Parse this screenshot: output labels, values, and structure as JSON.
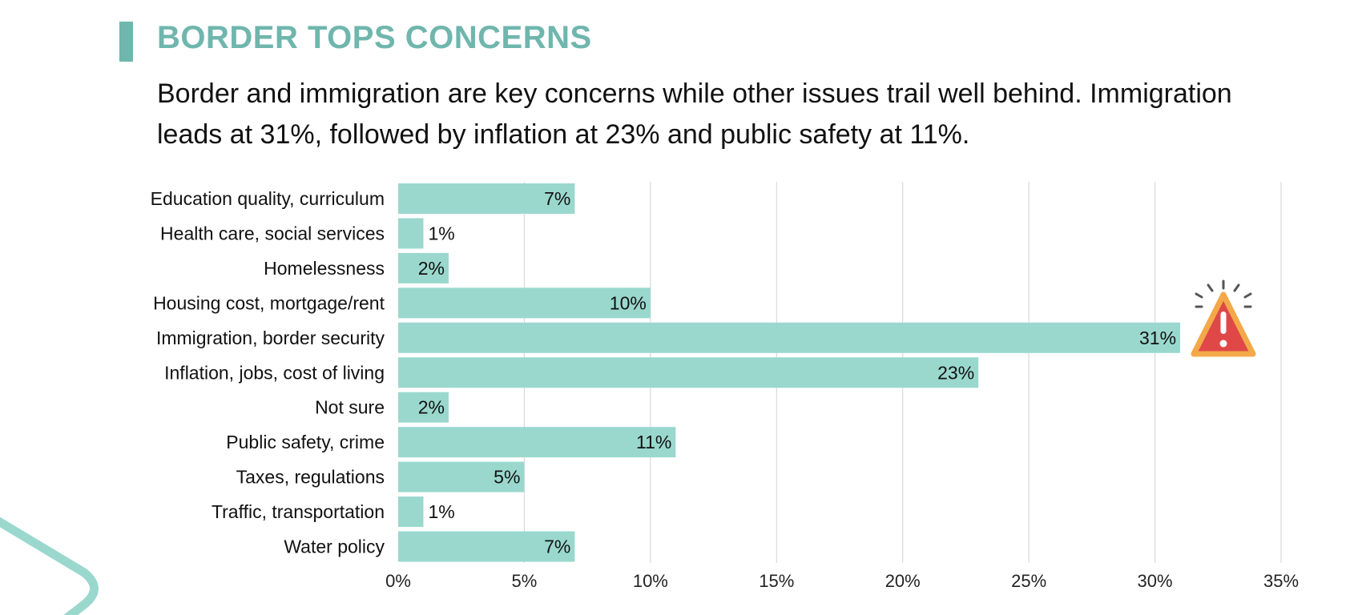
{
  "header": {
    "title": "BORDER TOPS CONCERNS",
    "subtitle": "Border and immigration are key concerns while other issues trail well behind. Immigration leads at 31%, followed by inflation at 23% and public safety at 11%."
  },
  "colors": {
    "accent": "#6fb6ad",
    "bar": "#9ad8ce",
    "grid": "#d9d9d9",
    "warning_fill": "#e04848",
    "warning_stroke": "#f3a94a",
    "decor": "#9ad8ce"
  },
  "icons": {
    "alert": "warning-triangle-icon"
  },
  "chart_data": {
    "type": "bar",
    "orientation": "horizontal",
    "categories": [
      "Education quality, curriculum",
      "Health care, social services",
      "Homelessness",
      "Housing cost, mortgage/rent",
      "Immigration, border security",
      "Inflation, jobs, cost of living",
      "Not sure",
      "Public safety, crime",
      "Taxes, regulations",
      "Traffic, transportation",
      "Water policy"
    ],
    "values": [
      7,
      1,
      2,
      10,
      31,
      23,
      2,
      11,
      5,
      1,
      7
    ],
    "value_labels": [
      "7%",
      "1%",
      "2%",
      "10%",
      "31%",
      "23%",
      "2%",
      "11%",
      "5%",
      "1%",
      "7%"
    ],
    "xlim": [
      0,
      35
    ],
    "xticks": [
      0,
      5,
      10,
      15,
      20,
      25,
      30,
      35
    ],
    "xtick_labels": [
      "0%",
      "5%",
      "10%",
      "15%",
      "20%",
      "25%",
      "30%",
      "35%"
    ],
    "grid": true,
    "xlabel": "",
    "ylabel": "",
    "highlight_category": "Immigration, border security"
  }
}
